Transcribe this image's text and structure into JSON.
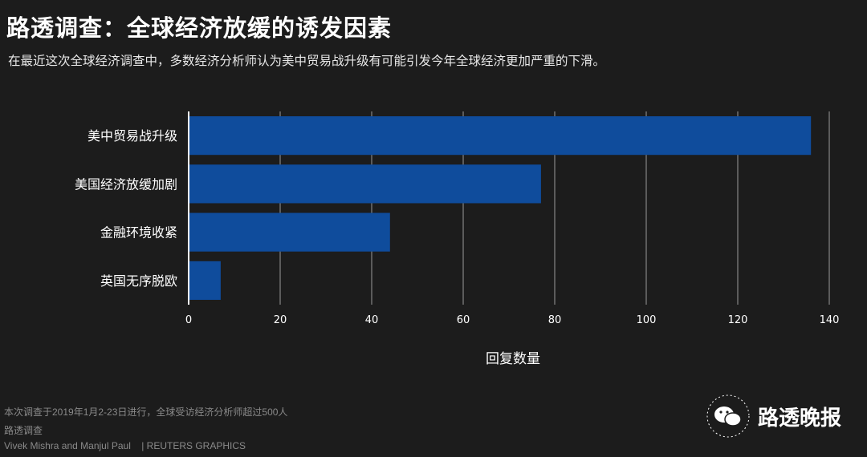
{
  "header": {
    "title": "路透调查：全球经济放缓的诱发因素",
    "subtitle": "在最近这次全球经济调查中，多数经济分析师认为美中贸易战升级有可能引发今年全球经济更加严重的下滑。"
  },
  "chart_data": {
    "type": "bar",
    "orientation": "horizontal",
    "categories": [
      "美中贸易战升级",
      "美国经济放缓加剧",
      "金融环境收紧",
      "英国无序脱欧"
    ],
    "values": [
      136,
      77,
      44,
      7
    ],
    "xlabel": "回复数量",
    "ylabel": "",
    "xlim": [
      0,
      140
    ],
    "xticks": [
      0,
      20,
      40,
      60,
      80,
      100,
      120,
      140
    ],
    "grid": "vertical",
    "bar_color": "#0f4c9c"
  },
  "footer": {
    "note": "本次调查于2019年1月2-23日进行，全球受访经济分析师超过500人",
    "source": "路透调查",
    "credit": "Vivek Mishra and Manjul Paul",
    "brand": "| REUTERS GRAPHICS"
  },
  "watermark": {
    "icon": "wechat-icon",
    "text": "路透晚报"
  }
}
